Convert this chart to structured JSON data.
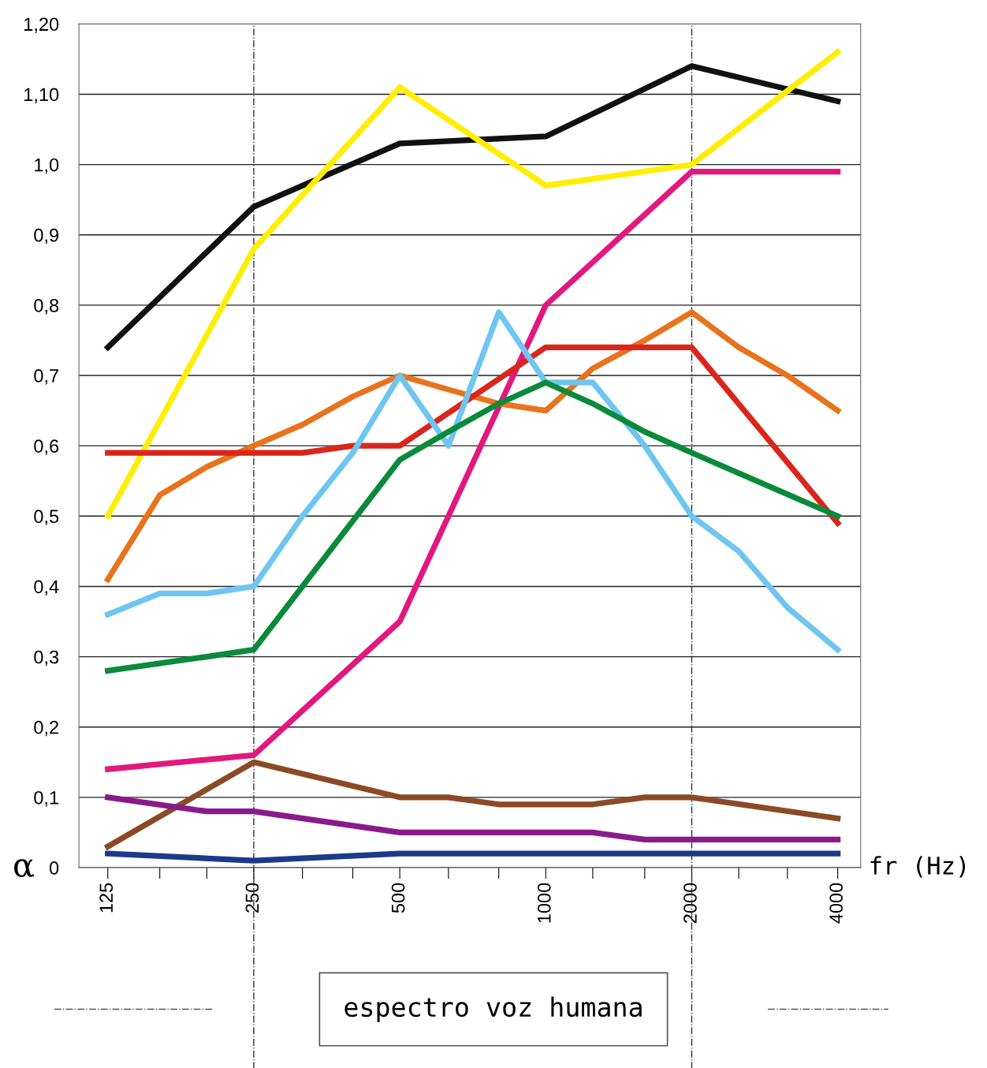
{
  "chart_data": {
    "type": "line",
    "xlabel": "fr (Hz)",
    "ylabel": "α",
    "log": "x",
    "grid": "y",
    "marker": "none",
    "line_style": "solid",
    "xlim": [
      109,
      4460
    ],
    "ylim": [
      0,
      1.2
    ],
    "xticks": [
      125,
      {
        "value": 160,
        "label": null
      },
      {
        "value": 200,
        "label": null
      },
      250,
      {
        "value": 315,
        "label": null
      },
      {
        "value": 400,
        "label": null
      },
      500,
      {
        "value": 630,
        "label": null
      },
      {
        "value": 800,
        "label": null
      },
      1000,
      {
        "value": 1250,
        "label": null
      },
      {
        "value": 1600,
        "label": null
      },
      2000,
      {
        "value": 2500,
        "label": null
      },
      {
        "value": 3150,
        "label": null
      },
      4000
    ],
    "yticks": [
      0,
      {
        "value": 0.1,
        "label": "0,1"
      },
      {
        "value": 0.2,
        "label": "0,2"
      },
      {
        "value": 0.3,
        "label": "0,3"
      },
      {
        "value": 0.4,
        "label": "0,4"
      },
      {
        "value": 0.5,
        "label": "0,5"
      },
      {
        "value": 0.6,
        "label": "0,6"
      },
      {
        "value": 0.7,
        "label": "0,7"
      },
      {
        "value": 0.8,
        "label": "0,8"
      },
      {
        "value": 0.9,
        "label": "0,9"
      },
      {
        "value": 1.0,
        "label": "1,0"
      },
      {
        "value": 1.1,
        "label": "1,10"
      },
      {
        "value": 1.2,
        "label": "1,20"
      }
    ],
    "ref_lines": [
      {
        "axis": "x",
        "value": 250,
        "color": "#333333",
        "line_style": "dashdot"
      },
      {
        "axis": "x",
        "value": 2000,
        "color": "#333333",
        "line_style": "dashdot"
      }
    ],
    "annotations": [
      "espectro voz humana"
    ],
    "series": [
      {
        "color": "#111111",
        "x": [
          125,
          250,
          500,
          1000,
          2000,
          4000
        ],
        "values": [
          0.74,
          0.94,
          1.03,
          1.04,
          1.14,
          1.09
        ]
      },
      {
        "color": "#ffee00",
        "x": [
          125,
          250,
          500,
          1000,
          2000,
          4000
        ],
        "values": [
          0.5,
          0.88,
          1.11,
          0.97,
          1.0,
          1.16
        ]
      },
      {
        "color": "#e2187e",
        "x": [
          125,
          250,
          500,
          1000,
          2000,
          4000
        ],
        "values": [
          0.14,
          0.16,
          0.35,
          0.8,
          0.99,
          0.99
        ]
      },
      {
        "color": "#e8731c",
        "x": [
          125,
          160,
          200,
          250,
          315,
          400,
          500,
          630,
          800,
          1000,
          1250,
          1600,
          2000,
          2500,
          3150,
          4000
        ],
        "values": [
          0.41,
          0.53,
          0.57,
          0.6,
          0.63,
          0.67,
          0.7,
          0.68,
          0.66,
          0.65,
          0.71,
          0.75,
          0.79,
          0.74,
          0.7,
          0.65
        ]
      },
      {
        "color": "#d9261c",
        "x": [
          125,
          250,
          315,
          400,
          500,
          1000,
          2000,
          4000
        ],
        "values": [
          0.59,
          0.59,
          0.59,
          0.6,
          0.6,
          0.74,
          0.74,
          0.49
        ]
      },
      {
        "color": "#6ec6f0",
        "x": [
          125,
          160,
          200,
          250,
          315,
          400,
          500,
          630,
          800,
          1000,
          1250,
          1600,
          2000,
          2500,
          3150,
          4000
        ],
        "values": [
          0.36,
          0.39,
          0.39,
          0.4,
          0.5,
          0.59,
          0.7,
          0.6,
          0.79,
          0.69,
          0.69,
          0.6,
          0.5,
          0.45,
          0.37,
          0.31
        ]
      },
      {
        "color": "#0a8a3a",
        "x": [
          125,
          200,
          250,
          500,
          630,
          800,
          1000,
          1250,
          1600,
          2000,
          4000
        ],
        "values": [
          0.28,
          0.3,
          0.31,
          0.58,
          0.62,
          0.66,
          0.69,
          0.66,
          0.62,
          0.59,
          0.5
        ]
      },
      {
        "color": "#8b4a26",
        "x": [
          125,
          250,
          500,
          630,
          800,
          1000,
          1250,
          1600,
          2000,
          4000
        ],
        "values": [
          0.03,
          0.15,
          0.1,
          0.1,
          0.09,
          0.09,
          0.09,
          0.1,
          0.1,
          0.07
        ]
      },
      {
        "color": "#8a1a8a",
        "x": [
          125,
          200,
          250,
          500,
          1250,
          1600,
          4000
        ],
        "values": [
          0.1,
          0.08,
          0.08,
          0.05,
          0.05,
          0.04,
          0.04
        ]
      },
      {
        "color": "#1a3a8a",
        "x": [
          125,
          250,
          500,
          800,
          1000,
          1250,
          2000,
          2500,
          4000
        ],
        "values": [
          0.02,
          0.01,
          0.02,
          0.02,
          0.02,
          0.02,
          0.02,
          0.02,
          0.02
        ]
      }
    ]
  }
}
